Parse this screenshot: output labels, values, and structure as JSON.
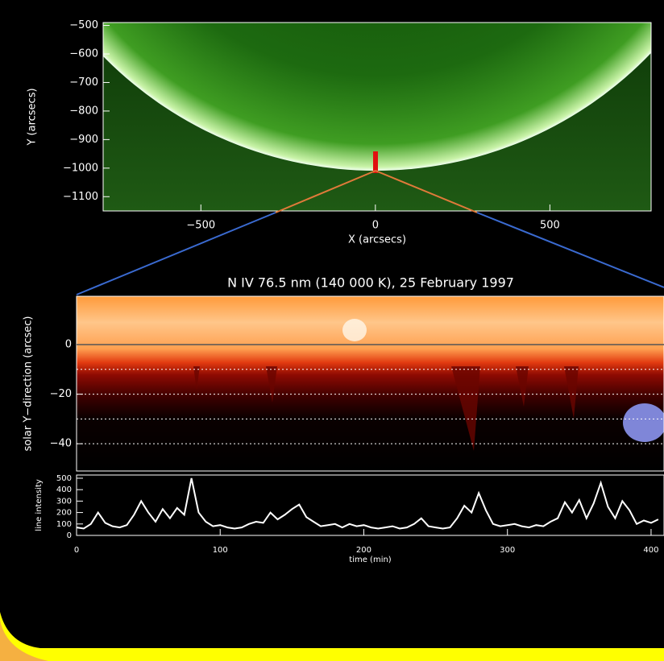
{
  "chart_data": [
    {
      "type": "image",
      "xlabel": "X (arcsecs)",
      "ylabel": "Y (arcsecs)",
      "xlim": [
        -780,
        790
      ],
      "xticks": [
        {
          "value": -500,
          "label": "−500"
        },
        0,
        500
      ],
      "ylim": [
        -1150,
        -490
      ],
      "yticks": [
        {
          "value": -500,
          "label": "−500"
        },
        {
          "value": -600,
          "label": "−600"
        },
        {
          "value": -700,
          "label": "−700"
        },
        {
          "value": -800,
          "label": "−800"
        },
        {
          "value": -900,
          "label": "−900"
        },
        {
          "value": -1000,
          "label": "−1000"
        },
        {
          "value": -1100,
          "label": "−1100"
        }
      ]
    },
    {
      "type": "heatmap",
      "title": "N IV 76.5 nm (140 000 K), 25 February 1997",
      "ylabel": "solar Y−direction (arcsec)",
      "ylim": [
        -51,
        19.5
      ],
      "yticks": [
        0,
        {
          "value": -20,
          "label": "−20"
        },
        {
          "value": -40,
          "label": "−40"
        }
      ],
      "hlines": [
        -10,
        -20,
        -30,
        -40
      ]
    },
    {
      "type": "line",
      "xlabel": "time (min)",
      "ylabel": "line intensity",
      "color": "#ffffff",
      "xlim": [
        0,
        409
      ],
      "xticks": [
        0,
        100,
        200,
        300,
        400
      ],
      "ylim": [
        0,
        528
      ],
      "yticks": [
        0,
        100,
        200,
        300,
        400,
        500
      ],
      "x": [
        0,
        5,
        10,
        15,
        20,
        25,
        30,
        35,
        40,
        45,
        50,
        55,
        60,
        65,
        70,
        75,
        80,
        85,
        90,
        95,
        100,
        105,
        110,
        115,
        120,
        125,
        130,
        135,
        140,
        145,
        150,
        155,
        160,
        165,
        170,
        175,
        180,
        185,
        190,
        195,
        200,
        205,
        210,
        215,
        220,
        225,
        230,
        235,
        240,
        245,
        250,
        255,
        260,
        265,
        270,
        275,
        280,
        285,
        290,
        295,
        300,
        305,
        310,
        315,
        320,
        325,
        330,
        335,
        340,
        345,
        350,
        355,
        360,
        365,
        370,
        375,
        380,
        385,
        390,
        395,
        400,
        405
      ],
      "values": [
        70,
        60,
        100,
        200,
        110,
        80,
        70,
        90,
        180,
        300,
        200,
        120,
        230,
        150,
        240,
        180,
        500,
        200,
        120,
        80,
        90,
        70,
        60,
        70,
        100,
        120,
        110,
        200,
        140,
        180,
        230,
        270,
        160,
        120,
        80,
        90,
        100,
        70,
        100,
        80,
        90,
        70,
        60,
        70,
        80,
        60,
        70,
        100,
        150,
        80,
        70,
        60,
        70,
        150,
        260,
        200,
        370,
        220,
        100,
        80,
        90,
        100,
        80,
        70,
        90,
        80,
        120,
        150,
        290,
        200,
        310,
        150,
        280,
        460,
        250,
        150,
        300,
        220,
        100,
        130,
        110,
        140
      ]
    }
  ]
}
